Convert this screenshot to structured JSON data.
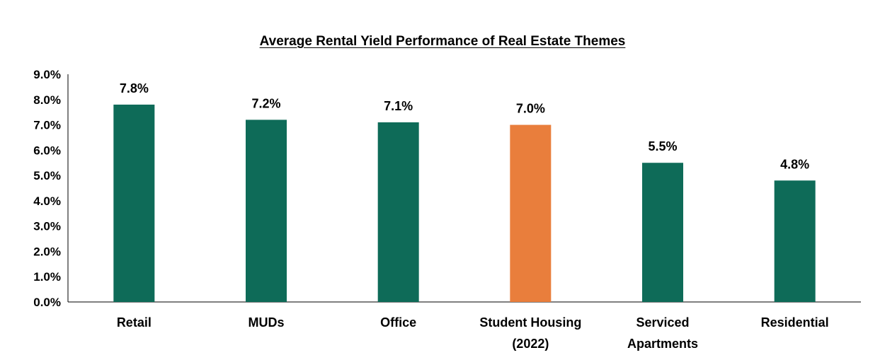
{
  "chart_data": {
    "type": "bar",
    "title": "Average Rental Yield Performance of Real Estate Themes",
    "categories": [
      [
        "Retail"
      ],
      [
        "MUDs"
      ],
      [
        "Office"
      ],
      [
        "Student Housing",
        "(2022)"
      ],
      [
        "Serviced",
        "Apartments"
      ],
      [
        "Residential"
      ]
    ],
    "values": [
      7.8,
      7.2,
      7.1,
      7.0,
      5.5,
      4.8
    ],
    "data_labels": [
      "7.8%",
      "7.2%",
      "7.1%",
      "7.0%",
      "5.5%",
      "4.8%"
    ],
    "bar_colors": [
      "#0e6b58",
      "#0e6b58",
      "#0e6b58",
      "#e97e3c",
      "#0e6b58",
      "#0e6b58"
    ],
    "ylim": [
      0,
      9
    ],
    "yticks": [
      "0.0%",
      "1.0%",
      "2.0%",
      "3.0%",
      "4.0%",
      "5.0%",
      "6.0%",
      "7.0%",
      "8.0%",
      "9.0%"
    ],
    "xlabel": "",
    "ylabel": "",
    "grid": false,
    "legend": "none"
  }
}
